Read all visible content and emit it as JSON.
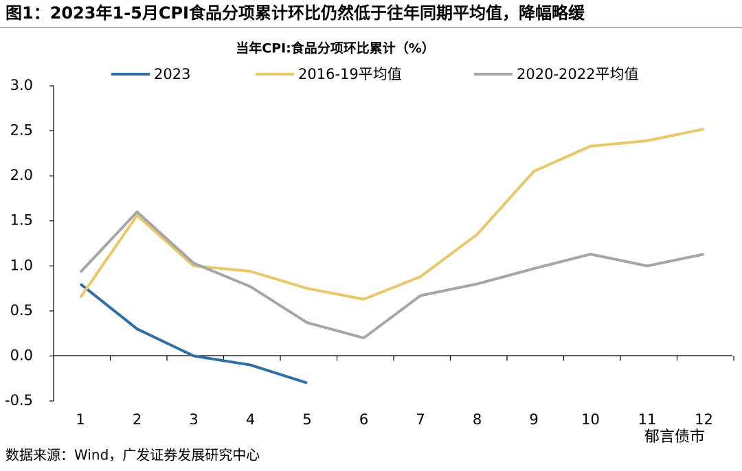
{
  "chart_data": {
    "type": "line",
    "title": "图1：2023年1-5月CPI食品分项累计环比仍然低于往年同期平均值，降幅略缓",
    "subtitle": "当年CPI:食品分项环比累计（%）",
    "categories": [
      "1",
      "2",
      "3",
      "4",
      "5",
      "6",
      "7",
      "8",
      "9",
      "10",
      "11",
      "12"
    ],
    "series": [
      {
        "name": "2023",
        "color": "#2e6fa7",
        "values": [
          0.8,
          0.3,
          0.0,
          -0.1,
          -0.3,
          null,
          null,
          null,
          null,
          null,
          null,
          null
        ]
      },
      {
        "name": "2016-19平均值",
        "color": "#e8c86b",
        "values": [
          0.65,
          1.56,
          1.0,
          0.94,
          0.75,
          0.63,
          0.88,
          1.35,
          2.05,
          2.33,
          2.39,
          2.52
        ]
      },
      {
        "name": "2020-2022平均值",
        "color": "#a6a6a6",
        "values": [
          0.93,
          1.6,
          1.03,
          0.77,
          0.37,
          0.2,
          0.67,
          0.8,
          0.97,
          1.13,
          1.0,
          1.13
        ]
      }
    ],
    "ylim": [
      -0.5,
      3.0
    ],
    "yticks": [
      {
        "value": -0.5,
        "label": "-0.5"
      },
      {
        "value": 0,
        "label": "0.0"
      },
      0.5,
      {
        "value": 1,
        "label": "1.0"
      },
      1.5,
      {
        "value": 2,
        "label": "2.0"
      },
      2.5,
      {
        "value": 3,
        "label": "3.0"
      }
    ],
    "legend": "top",
    "grid": false,
    "source": "数据来源：Wind，广发证券发展研究中心",
    "watermark": "郁言债市"
  }
}
